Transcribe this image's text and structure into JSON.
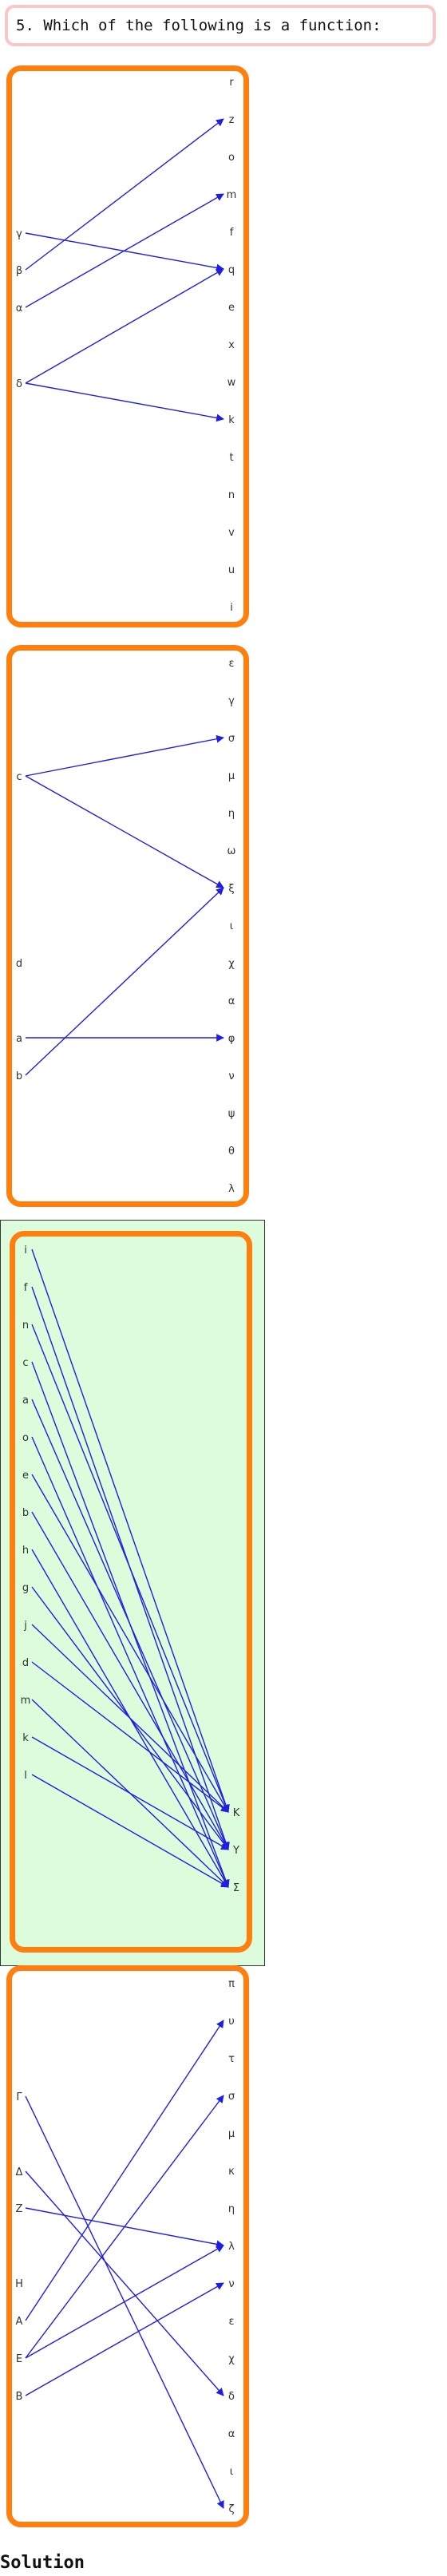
{
  "question": "5. Which of the following is a function:",
  "footer_label": "Solution",
  "colors": {
    "panel_border": "#ff7f0e",
    "arrow": "#1f1fe0",
    "highlight": "#dcfcdc",
    "question_border": "#f8c8c8"
  },
  "options": [
    {
      "left": [
        "γ",
        "β",
        "α",
        "δ"
      ],
      "right": [
        "r",
        "z",
        "o",
        "m",
        "f",
        "q",
        "e",
        "x",
        "w",
        "k",
        "t",
        "n",
        "v",
        "u",
        "i"
      ],
      "edges": [
        [
          "γ",
          "q"
        ],
        [
          "β",
          "z"
        ],
        [
          "α",
          "m"
        ],
        [
          "δ",
          "q"
        ],
        [
          "δ",
          "k"
        ]
      ],
      "highlighted": false
    },
    {
      "left": [
        "c",
        "d",
        "a",
        "b"
      ],
      "right": [
        "ε",
        "γ",
        "σ",
        "μ",
        "η",
        "ω",
        "ξ",
        "ι",
        "χ",
        "α",
        "φ",
        "ν",
        "ψ",
        "θ",
        "λ"
      ],
      "edges": [
        [
          "c",
          "σ"
        ],
        [
          "c",
          "ξ"
        ],
        [
          "a",
          "φ"
        ],
        [
          "b",
          "ξ"
        ]
      ],
      "highlighted": false
    },
    {
      "left": [
        "i",
        "f",
        "n",
        "c",
        "a",
        "o",
        "e",
        "b",
        "h",
        "g",
        "j",
        "d",
        "m",
        "k",
        "l"
      ],
      "right": [
        "K",
        "Y",
        "Σ"
      ],
      "edges": [
        [
          "i",
          "K"
        ],
        [
          "f",
          "Y"
        ],
        [
          "n",
          "K"
        ],
        [
          "c",
          "Σ"
        ],
        [
          "a",
          "Y"
        ],
        [
          "o",
          "Σ"
        ],
        [
          "e",
          "K"
        ],
        [
          "b",
          "Y"
        ],
        [
          "h",
          "Σ"
        ],
        [
          "g",
          "Y"
        ],
        [
          "j",
          "K"
        ],
        [
          "d",
          "K"
        ],
        [
          "m",
          "Σ"
        ],
        [
          "k",
          "Y"
        ],
        [
          "l",
          "Σ"
        ]
      ],
      "highlighted": true
    },
    {
      "left": [
        "Γ",
        "Δ",
        "Z",
        "H",
        "A",
        "E",
        "B"
      ],
      "right": [
        "π",
        "υ",
        "τ",
        "σ",
        "μ",
        "κ",
        "η",
        "λ",
        "ν",
        "ε",
        "χ",
        "δ",
        "α",
        "ι",
        "ζ"
      ],
      "edges": [
        [
          "Γ",
          "ζ"
        ],
        [
          "Δ",
          "δ"
        ],
        [
          "Z",
          "λ"
        ],
        [
          "A",
          "υ"
        ],
        [
          "E",
          "σ"
        ],
        [
          "E",
          "λ"
        ],
        [
          "B",
          "ν"
        ]
      ],
      "highlighted": false
    }
  ]
}
